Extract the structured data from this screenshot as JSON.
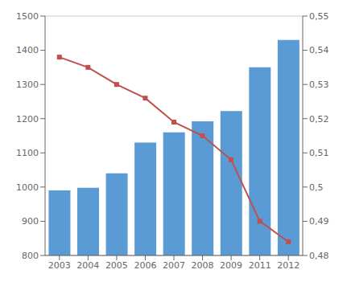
{
  "chart_data": {
    "type": "bar",
    "categories": [
      "2003",
      "2004",
      "2005",
      "2006",
      "2007",
      "2008",
      "2009",
      "2011",
      "2012"
    ],
    "series": [
      {
        "type": "bar",
        "color": "#5b9bd5",
        "values": [
          990,
          998,
          1040,
          1130,
          1160,
          1192,
          1222,
          1350,
          1430
        ]
      },
      {
        "type": "line",
        "color": "#c0504d",
        "marker": "square",
        "axis": "y2",
        "values": [
          0.538,
          0.535,
          0.53,
          0.526,
          0.519,
          0.515,
          0.508,
          0.49,
          0.484
        ]
      }
    ],
    "ylim": [
      800,
      1500
    ],
    "yticks": [
      800,
      900,
      1000,
      1100,
      1200,
      1300,
      1400,
      1500
    ],
    "y2lim": [
      0.48,
      0.55
    ],
    "y2ticks": [
      {
        "value": 0.48,
        "label": "0,48"
      },
      {
        "value": 0.49,
        "label": "0,49"
      },
      {
        "value": 0.5,
        "label": "0,5"
      },
      {
        "value": 0.51,
        "label": "0,51"
      },
      {
        "value": 0.52,
        "label": "0,52"
      },
      {
        "value": 0.53,
        "label": "0,53"
      },
      {
        "value": 0.54,
        "label": "0,54"
      },
      {
        "value": 0.55,
        "label": "0,55"
      }
    ],
    "grid": true
  }
}
